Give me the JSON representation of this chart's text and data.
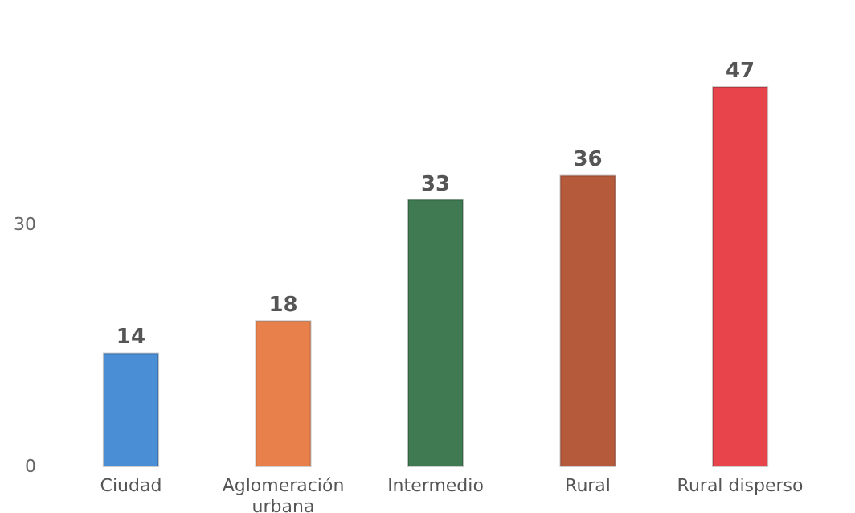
{
  "chart_data": {
    "type": "bar",
    "categories": [
      "Ciudad",
      "Aglomeración urbana",
      "Intermedio",
      "Rural",
      "Rural disperso"
    ],
    "values": [
      14,
      18,
      33,
      36,
      47
    ],
    "colors": [
      "#4a8fd6",
      "#e8804c",
      "#3f7a52",
      "#b65a3c",
      "#e8444c"
    ],
    "ylim": [
      0,
      47
    ],
    "yticks": [
      0,
      30
    ],
    "grid": false,
    "data_labels": true
  }
}
